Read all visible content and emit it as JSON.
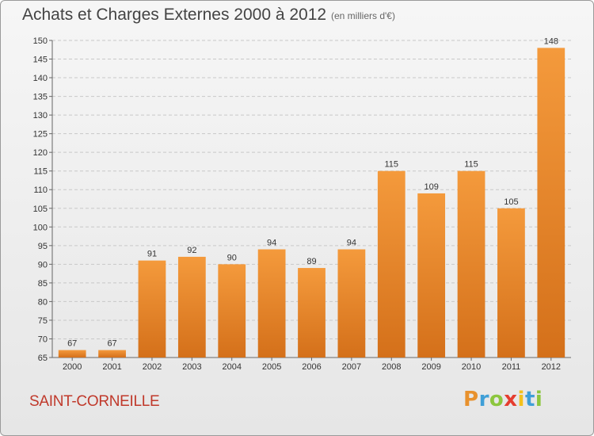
{
  "header": {
    "title": "Achats et Charges Externes 2000 à 2012",
    "unit": "(en milliers d'€)"
  },
  "footer": {
    "commune": "SAINT-CORNEILLE",
    "logo": {
      "text": "Proxiti",
      "colors": [
        "#e8912d",
        "#3f9fd7",
        "#8cc63e",
        "#e53d2f",
        "#f4c11c",
        "#3f9fd7",
        "#8cc63e"
      ]
    }
  },
  "colors": {
    "bar": "#f0902f",
    "bar_dark": "#d8741c",
    "grid": "#c8c8c8",
    "text": "#333333"
  },
  "chart_data": {
    "type": "bar",
    "title": "Achats et Charges Externes 2000 à 2012",
    "subtitle": "(en milliers d'€)",
    "xlabel": "",
    "ylabel": "",
    "categories": [
      "2000",
      "2001",
      "2002",
      "2003",
      "2004",
      "2005",
      "2006",
      "2007",
      "2008",
      "2009",
      "2010",
      "2011",
      "2012"
    ],
    "values": [
      67,
      67,
      91,
      92,
      90,
      94,
      89,
      94,
      115,
      109,
      115,
      105,
      148
    ],
    "ylim": [
      65,
      150
    ],
    "yticks": [
      65,
      70,
      75,
      80,
      85,
      90,
      95,
      100,
      105,
      110,
      115,
      120,
      125,
      130,
      135,
      140,
      145,
      150
    ],
    "grid": true,
    "data_labels": true
  }
}
